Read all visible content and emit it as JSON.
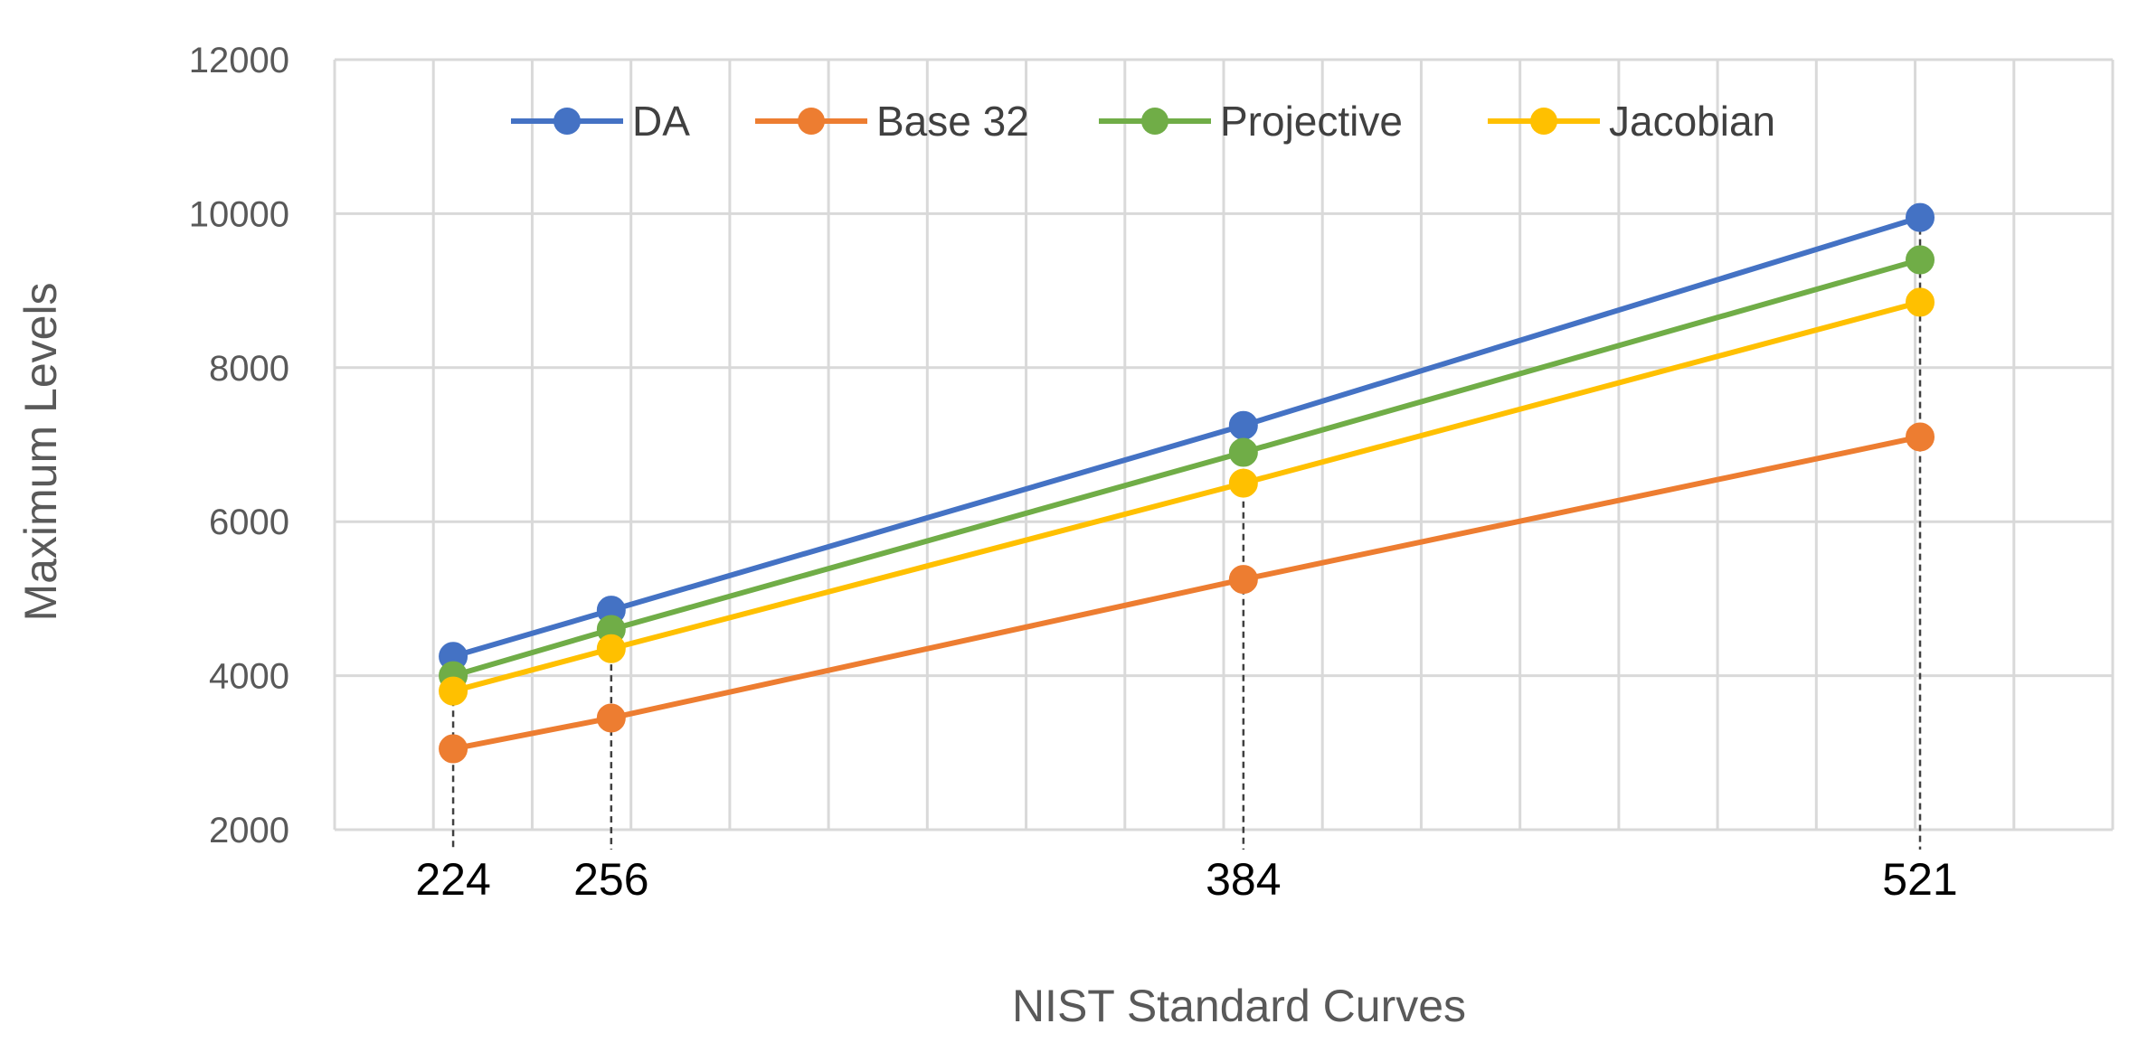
{
  "chart_data": {
    "type": "line",
    "title": "",
    "xlabel": "NIST Standard Curves",
    "ylabel": "Maximum Levels",
    "x": [
      224,
      256,
      384,
      521
    ],
    "x_tick_labels": [
      "224",
      "256",
      "384",
      "521"
    ],
    "xlim": [
      200,
      560
    ],
    "ylim": [
      2000,
      12000
    ],
    "y_ticks": [
      2000,
      4000,
      6000,
      8000,
      10000,
      12000
    ],
    "grid": true,
    "drop_lines": true,
    "legend_position": "top",
    "series": [
      {
        "name": "DA",
        "color": "#4472C4",
        "values": [
          4250,
          4850,
          7250,
          9950
        ]
      },
      {
        "name": "Base 32",
        "color": "#ED7D31",
        "values": [
          3050,
          3450,
          5250,
          7100
        ]
      },
      {
        "name": "Projective",
        "color": "#70AD47",
        "values": [
          4000,
          4600,
          6900,
          9400
        ]
      },
      {
        "name": "Jacobian",
        "color": "#FFC000",
        "values": [
          3800,
          4350,
          6500,
          8850
        ]
      }
    ]
  }
}
